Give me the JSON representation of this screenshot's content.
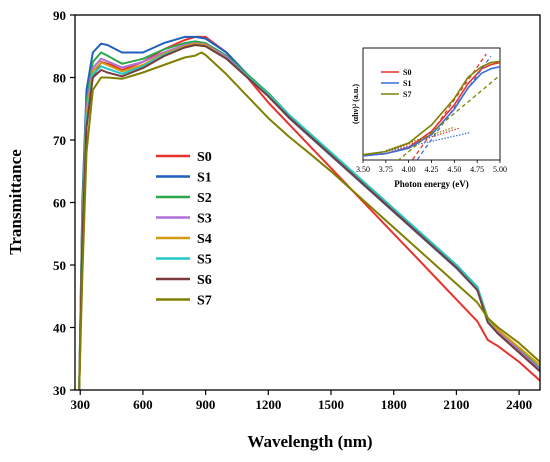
{
  "chart_data": [
    {
      "type": "line",
      "xlabel": "Wavelength (nm)",
      "ylabel": "Transmittance",
      "xlim": [
        275,
        2500
      ],
      "ylim": [
        30,
        90
      ],
      "xticks": [
        300,
        600,
        900,
        1200,
        1500,
        1800,
        2100,
        2400
      ],
      "yticks": [
        30,
        40,
        50,
        60,
        70,
        80,
        90
      ],
      "legend_position": "center-left",
      "grid": false,
      "series": [
        {
          "name": "S0",
          "color": "#e8322e",
          "x": [
            295,
            310,
            330,
            360,
            400,
            450,
            500,
            600,
            700,
            800,
            850,
            900,
            1000,
            1100,
            1200,
            1300,
            1400,
            1500,
            1600,
            1700,
            1800,
            1900,
            2000,
            2100,
            2200,
            2250,
            2300,
            2400,
            2500
          ],
          "y": [
            30,
            55,
            74,
            80,
            82.5,
            82,
            81.2,
            82.5,
            84.5,
            86,
            86.5,
            86.5,
            84,
            80,
            76,
            72.5,
            69,
            65.5,
            62,
            58.5,
            55,
            51.5,
            48,
            44.5,
            41,
            38,
            37,
            34.5,
            31.5
          ]
        },
        {
          "name": "S1",
          "color": "#1f5fbf",
          "x": [
            295,
            310,
            330,
            360,
            400,
            430,
            500,
            600,
            700,
            800,
            850,
            900,
            1000,
            1100,
            1200,
            1300,
            1400,
            1500,
            1600,
            1700,
            1800,
            1900,
            2000,
            2100,
            2200,
            2250,
            2300,
            2400,
            2500
          ],
          "y": [
            30,
            60,
            78,
            84,
            85.4,
            85.2,
            84,
            84,
            85.5,
            86.5,
            86.5,
            86.2,
            84,
            80.5,
            77,
            73.5,
            70.5,
            67.5,
            64.5,
            61.5,
            58.5,
            55.5,
            52.5,
            49.5,
            46,
            41,
            39,
            36,
            33
          ]
        },
        {
          "name": "S2",
          "color": "#2aa84a",
          "x": [
            295,
            310,
            330,
            360,
            400,
            430,
            500,
            600,
            700,
            800,
            850,
            900,
            1000,
            1100,
            1200,
            1300,
            1400,
            1500,
            1600,
            1700,
            1800,
            1900,
            2000,
            2100,
            2200,
            2250,
            2300,
            2400,
            2500
          ],
          "y": [
            30,
            58,
            76,
            82.5,
            84,
            83.5,
            82.2,
            83,
            84.5,
            85.5,
            85.8,
            85.5,
            83.5,
            80.5,
            77.5,
            74,
            71,
            68,
            65,
            62,
            59,
            56,
            53,
            50,
            46.5,
            41.5,
            39.5,
            36.5,
            33.5
          ]
        },
        {
          "name": "S3",
          "color": "#b070d8",
          "x": [
            295,
            310,
            330,
            360,
            400,
            430,
            500,
            600,
            700,
            800,
            850,
            900,
            1000,
            1100,
            1200,
            1300,
            1400,
            1500,
            1600,
            1700,
            1800,
            1900,
            2000,
            2100,
            2200,
            2250,
            2300,
            2400,
            2500
          ],
          "y": [
            30,
            57,
            75,
            81.5,
            83,
            82.6,
            81.6,
            82.5,
            84,
            85.2,
            85.5,
            85.3,
            83.3,
            80.2,
            77.2,
            73.8,
            70.8,
            67.8,
            64.8,
            61.8,
            58.8,
            55.8,
            52.8,
            49.8,
            46.3,
            41.3,
            39.3,
            36.3,
            33.3
          ]
        },
        {
          "name": "S4",
          "color": "#d49a10",
          "x": [
            295,
            310,
            330,
            360,
            400,
            430,
            500,
            600,
            700,
            800,
            850,
            900,
            1000,
            1100,
            1200,
            1300,
            1400,
            1500,
            1600,
            1700,
            1800,
            1900,
            2000,
            2100,
            2200,
            2250,
            2300,
            2400,
            2500
          ],
          "y": [
            30,
            56,
            74,
            81,
            82.4,
            82,
            81,
            82,
            83.8,
            85,
            85.4,
            85.2,
            83,
            80,
            77,
            73.6,
            70.6,
            67.6,
            64.6,
            61.6,
            58.6,
            55.6,
            52.6,
            49.6,
            46.2,
            41.4,
            39.6,
            36.8,
            34
          ]
        },
        {
          "name": "S5",
          "color": "#20c8c8",
          "x": [
            295,
            310,
            330,
            360,
            400,
            430,
            500,
            600,
            700,
            800,
            850,
            900,
            1000,
            1100,
            1200,
            1300,
            1400,
            1500,
            1600,
            1700,
            1800,
            1900,
            2000,
            2100,
            2200,
            2250,
            2300,
            2400,
            2500
          ],
          "y": [
            30,
            55,
            73,
            80.5,
            81.8,
            81.4,
            80.6,
            81.8,
            83.6,
            84.8,
            85.2,
            85,
            83,
            80.2,
            77.3,
            74,
            71,
            68,
            65,
            62,
            59,
            56,
            53,
            50,
            46.5,
            41,
            39,
            36,
            33
          ]
        },
        {
          "name": "S6",
          "color": "#7a3b3b",
          "x": [
            295,
            310,
            330,
            360,
            400,
            430,
            500,
            600,
            700,
            800,
            850,
            900,
            1000,
            1100,
            1200,
            1300,
            1400,
            1500,
            1600,
            1700,
            1800,
            1900,
            2000,
            2100,
            2200,
            2250,
            2300,
            2400,
            2500
          ],
          "y": [
            30,
            54,
            72,
            80,
            81.2,
            80.8,
            80.2,
            81.5,
            83.4,
            84.8,
            85.2,
            85,
            83,
            80,
            77,
            73.6,
            70.6,
            67.6,
            64.6,
            61.6,
            58.6,
            55.6,
            52.6,
            49.6,
            46,
            40.8,
            39,
            36,
            33
          ]
        },
        {
          "name": "S7",
          "color": "#808000",
          "x": [
            295,
            310,
            330,
            360,
            400,
            430,
            500,
            600,
            700,
            800,
            850,
            880,
            900,
            1000,
            1100,
            1200,
            1300,
            1400,
            1500,
            1600,
            1700,
            1800,
            1900,
            2000,
            2100,
            2200,
            2250,
            2300,
            2400,
            2500
          ],
          "y": [
            30,
            48,
            68,
            78,
            80,
            80,
            79.8,
            80.8,
            82,
            83.2,
            83.5,
            84,
            83.6,
            80.5,
            77,
            73.5,
            70.5,
            67.8,
            65,
            62,
            59,
            56,
            53,
            50,
            47,
            44,
            41.5,
            40,
            37.5,
            34.5
          ]
        }
      ]
    },
    {
      "type": "line",
      "xlabel": "Photon energy (eV)",
      "ylabel": "(αhν)² (a.u.)",
      "xlim": [
        3.5,
        5.0
      ],
      "xticks": [
        "3.50",
        "3.75",
        "4.00",
        "4.25",
        "4.50",
        "4.75",
        "5.00"
      ],
      "legend_position": "top-left",
      "series": [
        {
          "name": "S0",
          "color": "#e8322e",
          "x": [
            3.5,
            3.75,
            4.0,
            4.25,
            4.5,
            4.65,
            4.8,
            4.9,
            5.0
          ],
          "y": [
            0.04,
            0.06,
            0.12,
            0.27,
            0.52,
            0.72,
            0.86,
            0.9,
            0.92
          ],
          "fit_x": [
            4.0,
            4.85
          ],
          "fit_y": [
            -0.05,
            1.0
          ],
          "tail_x": [
            3.75,
            4.55
          ],
          "tail_y": [
            0.08,
            0.3
          ]
        },
        {
          "name": "S1",
          "color": "#3a6fd8",
          "x": [
            3.5,
            3.75,
            4.0,
            4.25,
            4.5,
            4.65,
            4.8,
            4.9,
            5.0
          ],
          "y": [
            0.04,
            0.06,
            0.11,
            0.24,
            0.48,
            0.68,
            0.82,
            0.86,
            0.88
          ],
          "fit_x": [
            4.05,
            4.9
          ],
          "fit_y": [
            -0.05,
            0.98
          ],
          "tail_x": [
            3.75,
            4.68
          ],
          "tail_y": [
            0.08,
            0.26
          ]
        },
        {
          "name": "S7",
          "color": "#808000",
          "x": [
            3.5,
            3.75,
            4.0,
            4.25,
            4.5,
            4.65,
            4.8,
            4.9,
            5.0
          ],
          "y": [
            0.05,
            0.08,
            0.16,
            0.33,
            0.58,
            0.78,
            0.88,
            0.92,
            0.93
          ],
          "fit_x": [
            3.82,
            5.0
          ],
          "fit_y": [
            -0.05,
            0.8
          ],
          "tail_x": [
            3.75,
            4.5
          ],
          "tail_y": [
            0.09,
            0.31
          ]
        }
      ]
    }
  ]
}
